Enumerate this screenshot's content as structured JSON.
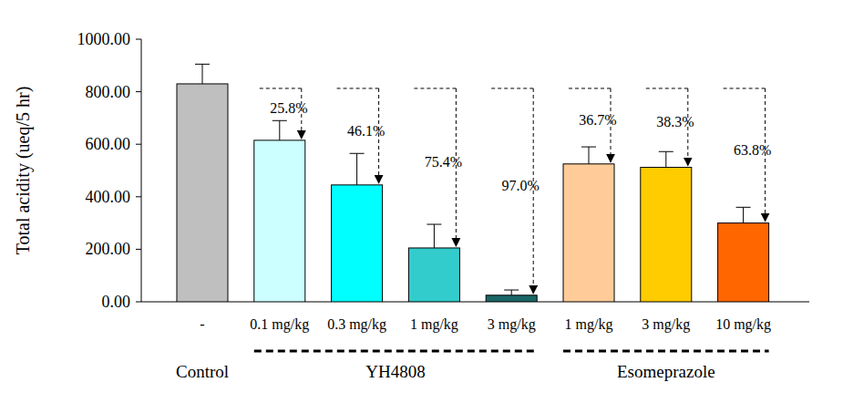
{
  "chart_data": {
    "type": "bar",
    "y_label": "Total acidity (ueq/5 hr)",
    "categories": [
      "-",
      "0.1 mg/kg",
      "0.3 mg/kg",
      "1 mg/kg",
      "3 mg/kg",
      "1 mg/kg",
      "3 mg/kg",
      "10 mg/kg"
    ],
    "values": [
      830,
      615,
      445,
      205,
      25,
      525,
      512,
      300
    ],
    "errors": [
      75,
      75,
      120,
      90,
      20,
      65,
      60,
      60
    ],
    "colors": [
      "#bfbfbf",
      "#ccffff",
      "#00ffff",
      "#33cccc",
      "#1a6666",
      "#ffcc99",
      "#ffcc00",
      "#ff6600"
    ],
    "reduction_labels": [
      null,
      "25.8%",
      "46.1%",
      "75.4%",
      "97.0%",
      "36.7%",
      "38.3%",
      "63.8%"
    ],
    "groups": [
      {
        "label": "Control",
        "size": 1
      },
      {
        "label": "YH4808",
        "size": 4
      },
      {
        "label": "Esomeprazole",
        "size": 3
      }
    ],
    "ylim": [
      0,
      1000
    ],
    "yticks": [
      {
        "value": 0,
        "label": "0.00"
      },
      {
        "value": 200,
        "label": "200.00"
      },
      {
        "value": 400,
        "label": "400.00"
      },
      {
        "value": 600,
        "label": "600.00"
      },
      {
        "value": 800,
        "label": "800.00"
      },
      {
        "value": 1000,
        "label": "1000.00"
      }
    ],
    "grid": false
  }
}
